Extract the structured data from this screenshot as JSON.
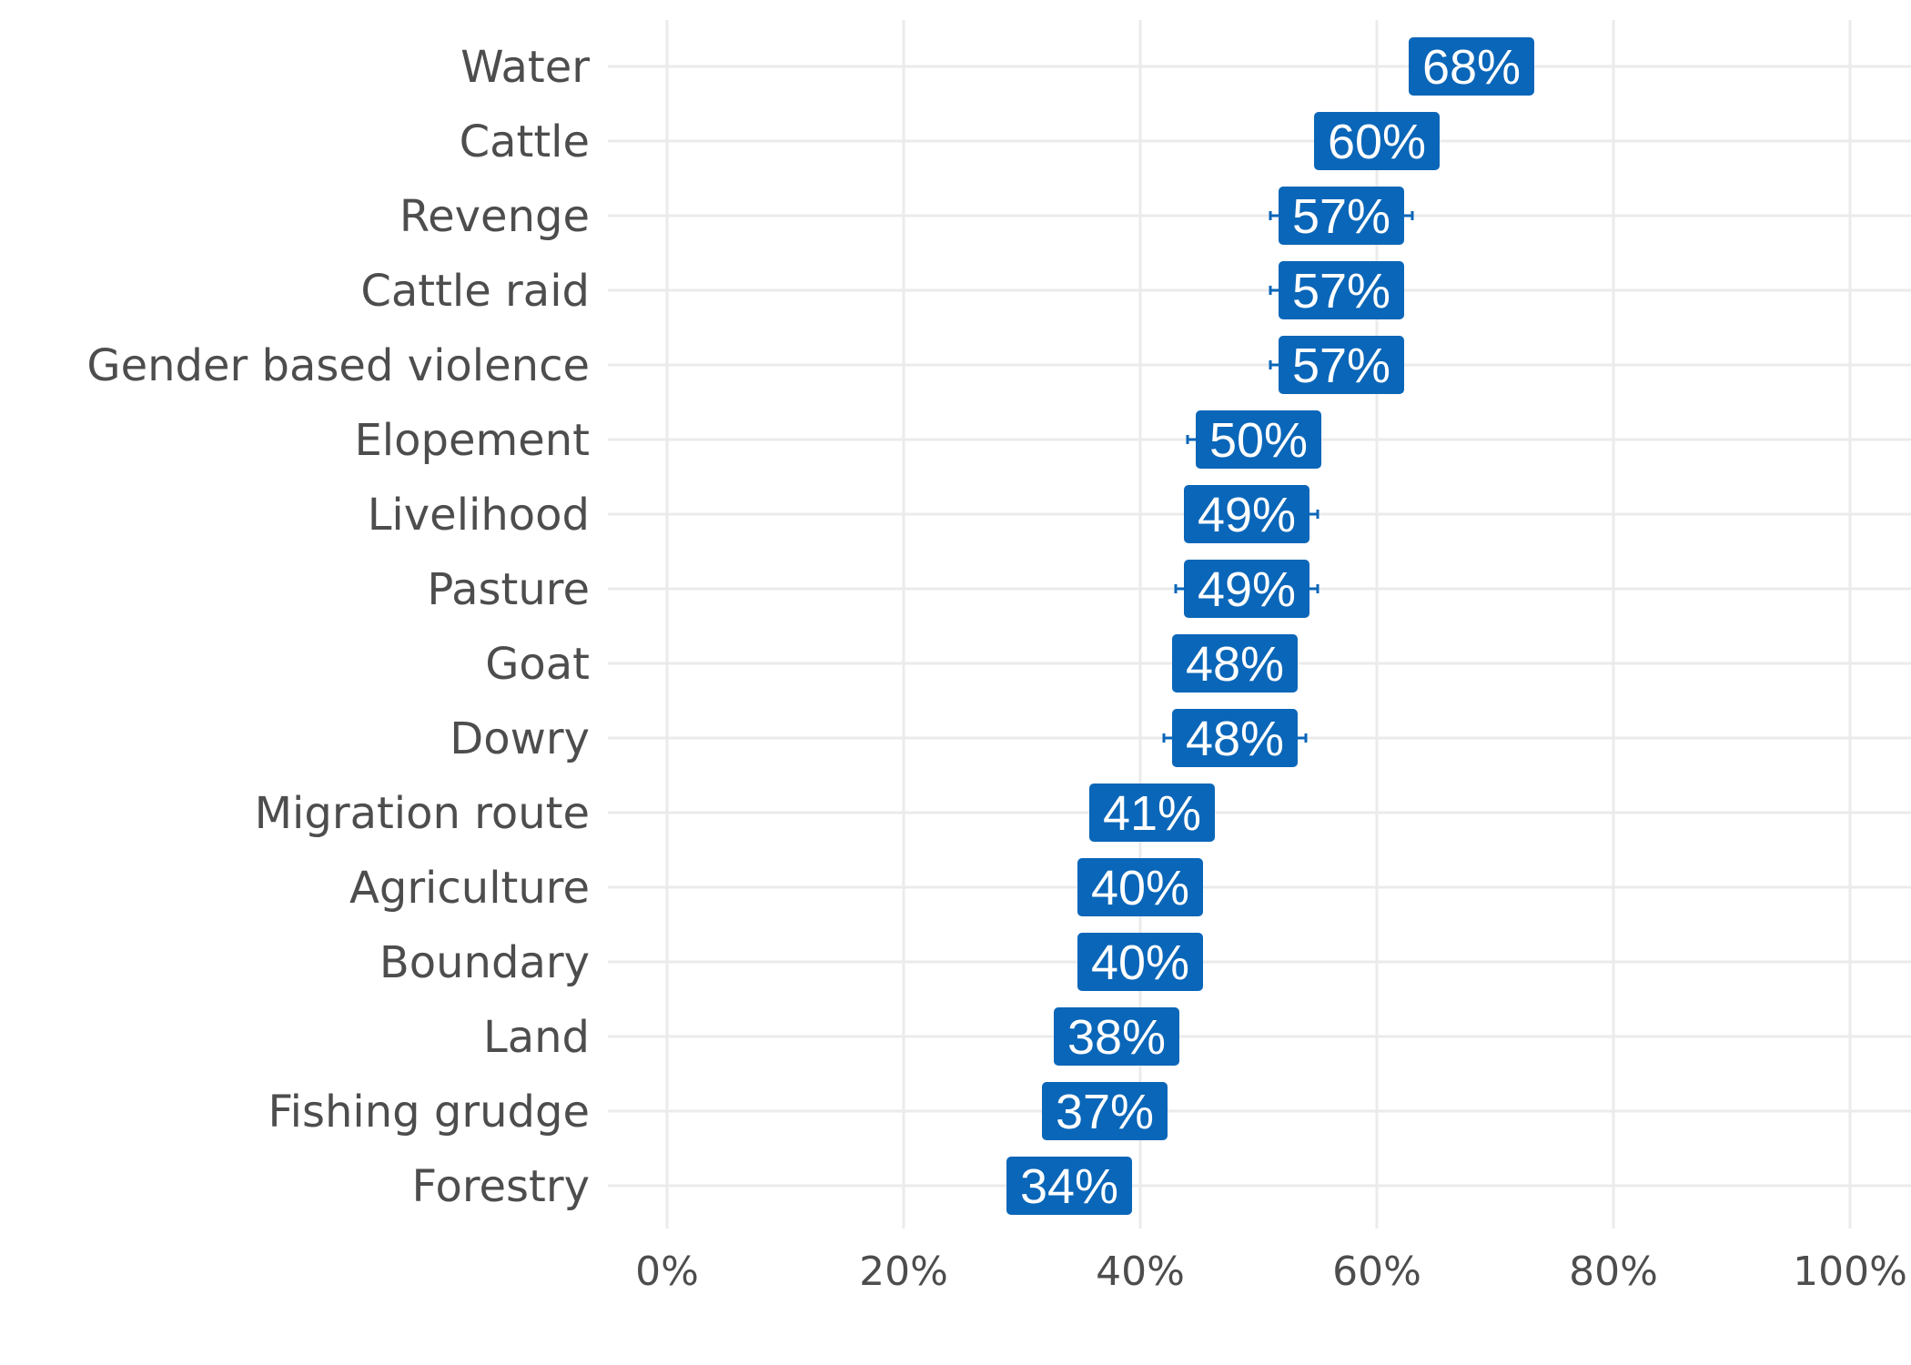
{
  "chart_data": {
    "type": "dot-range",
    "title": "",
    "xlabel": "",
    "ylabel": "",
    "xlim": [
      -0.05,
      1.05
    ],
    "x_ticks": [
      {
        "value": 0.0,
        "label": "0%"
      },
      {
        "value": 0.2,
        "label": "20%"
      },
      {
        "value": 0.4,
        "label": "40%"
      },
      {
        "value": 0.6,
        "label": "60%"
      },
      {
        "value": 0.8,
        "label": "80%"
      },
      {
        "value": 1.0,
        "label": "100%"
      }
    ],
    "grid": true,
    "categories": [
      "Water",
      "Cattle",
      "Revenge",
      "Cattle raid",
      "Gender based violence",
      "Elopement",
      "Livelihood",
      "Pasture",
      "Goat",
      "Dowry",
      "Migration route",
      "Agriculture",
      "Boundary",
      "Land",
      "Fishing grudge",
      "Forestry"
    ],
    "values": [
      0.68,
      0.6,
      0.57,
      0.57,
      0.57,
      0.5,
      0.49,
      0.49,
      0.48,
      0.48,
      0.41,
      0.4,
      0.4,
      0.38,
      0.37,
      0.34
    ],
    "value_labels": [
      "68%",
      "60%",
      "57%",
      "57%",
      "57%",
      "50%",
      "49%",
      "49%",
      "48%",
      "48%",
      "41%",
      "40%",
      "40%",
      "38%",
      "37%",
      "34%"
    ],
    "error_low": [
      0.63,
      0.55,
      0.51,
      0.51,
      0.51,
      0.44,
      0.44,
      0.43,
      0.43,
      0.42,
      0.36,
      0.35,
      0.35,
      0.33,
      0.32,
      0.29
    ],
    "error_high": [
      0.73,
      0.65,
      0.63,
      0.62,
      0.62,
      0.55,
      0.55,
      0.55,
      0.53,
      0.54,
      0.46,
      0.45,
      0.45,
      0.43,
      0.42,
      0.39
    ],
    "colors": {
      "label_fill": "#0a66b8",
      "label_text": "#ffffff",
      "grid": "#ebebeb",
      "axis_text": "#4d4d4d"
    }
  }
}
